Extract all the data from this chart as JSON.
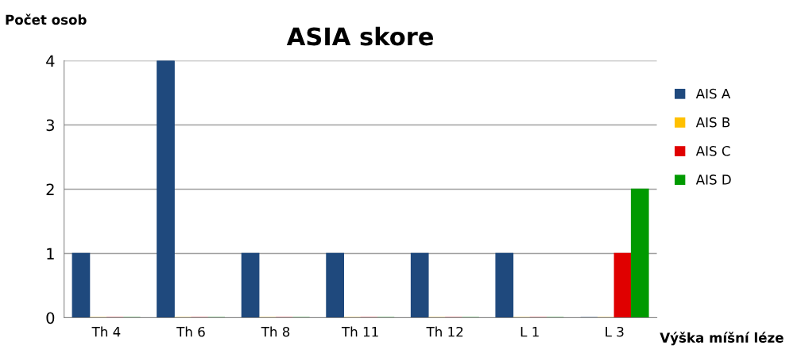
{
  "chart_data": {
    "type": "bar",
    "title": "ASIA skore",
    "xlabel": "Výška míšní léze",
    "ylabel": "Počet osob",
    "categories": [
      "Th 4",
      "Th 6",
      "Th 8",
      "Th 11",
      "Th 12",
      "L 1",
      "L 3"
    ],
    "series": [
      {
        "name": "AIS A",
        "color": "#1f497d",
        "values": [
          1,
          4,
          1,
          1,
          1,
          1,
          0
        ]
      },
      {
        "name": "AIS B",
        "color": "#ffc000",
        "values": [
          0,
          0,
          0,
          0,
          0,
          0,
          0
        ]
      },
      {
        "name": "AIS C",
        "color": "#e00000",
        "values": [
          0,
          0,
          0,
          0,
          0,
          0,
          1
        ]
      },
      {
        "name": "AIS D",
        "color": "#009a00",
        "values": [
          0,
          0,
          0,
          0,
          0,
          0,
          2
        ]
      }
    ],
    "ylim": [
      0,
      4
    ],
    "yticks": [
      0,
      1,
      2,
      3,
      4
    ],
    "grid": "y",
    "legend": "right"
  }
}
